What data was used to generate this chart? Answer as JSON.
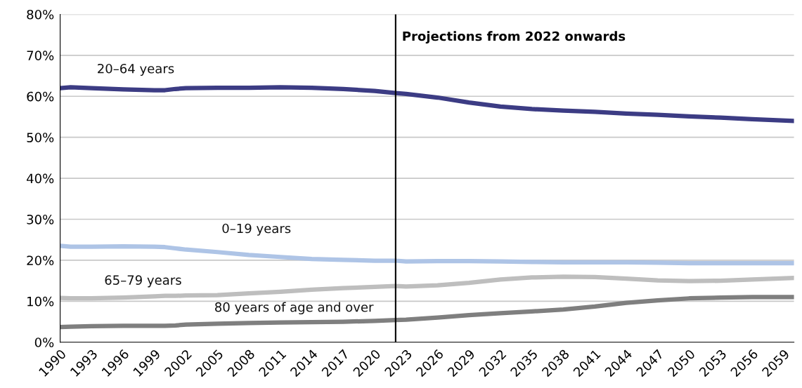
{
  "chart_data": {
    "type": "line",
    "x": [
      1990,
      1991,
      1993,
      1996,
      1999,
      2000,
      2001,
      2002,
      2005,
      2008,
      2011,
      2014,
      2017,
      2020,
      2022,
      2023,
      2026,
      2029,
      2032,
      2035,
      2038,
      2041,
      2044,
      2047,
      2050,
      2053,
      2056,
      2060
    ],
    "series": [
      {
        "name": "20–64 years",
        "color": "#3c3c84",
        "values": [
          62.0,
          62.2,
          62.0,
          61.7,
          61.5,
          61.5,
          61.8,
          62.0,
          62.1,
          62.1,
          62.2,
          62.1,
          61.8,
          61.3,
          60.8,
          60.6,
          59.7,
          58.5,
          57.5,
          56.9,
          56.5,
          56.2,
          55.8,
          55.5,
          55.1,
          54.8,
          54.4,
          54.0
        ]
      },
      {
        "name": "0–19 years",
        "color": "#aec4e6",
        "values": [
          23.5,
          23.3,
          23.3,
          23.4,
          23.3,
          23.2,
          22.9,
          22.6,
          22.0,
          21.3,
          20.8,
          20.3,
          20.1,
          19.9,
          19.9,
          19.7,
          19.8,
          19.8,
          19.7,
          19.6,
          19.5,
          19.5,
          19.5,
          19.4,
          19.3,
          19.3,
          19.3,
          19.3
        ]
      },
      {
        "name": "65–79 years",
        "color": "#bebebe",
        "values": [
          10.8,
          10.7,
          10.7,
          10.9,
          11.2,
          11.3,
          11.3,
          11.4,
          11.5,
          11.9,
          12.3,
          12.8,
          13.2,
          13.5,
          13.7,
          13.6,
          13.9,
          14.5,
          15.3,
          15.8,
          16.0,
          15.9,
          15.5,
          15.1,
          14.9,
          15.0,
          15.3,
          15.7
        ]
      },
      {
        "name": "80 years of age and over",
        "color": "#7f7f7f",
        "values": [
          3.7,
          3.8,
          3.9,
          4.0,
          4.0,
          4.0,
          4.1,
          4.3,
          4.5,
          4.7,
          4.8,
          4.9,
          5.0,
          5.2,
          5.4,
          5.5,
          6.0,
          6.6,
          7.1,
          7.5,
          8.0,
          8.7,
          9.6,
          10.2,
          10.7,
          10.9,
          11.0,
          11.0
        ]
      }
    ],
    "xlim": [
      1990,
      2060
    ],
    "xticks": [
      1990,
      1993,
      1996,
      1999,
      2002,
      2005,
      2008,
      2011,
      2014,
      2017,
      2020,
      2023,
      2026,
      2029,
      2032,
      2035,
      2038,
      2041,
      2044,
      2047,
      2050,
      2053,
      2056,
      2059
    ],
    "ylim": [
      0,
      80
    ],
    "yticks": [
      {
        "value": 0,
        "label": "0%"
      },
      {
        "value": 10,
        "label": "10%"
      },
      {
        "value": 20,
        "label": "20%"
      },
      {
        "value": 30,
        "label": "30%"
      },
      {
        "value": 40,
        "label": "40%"
      },
      {
        "value": 50,
        "label": "50%"
      },
      {
        "value": 60,
        "label": "60%"
      },
      {
        "value": 70,
        "label": "70%"
      },
      {
        "value": 80,
        "label": "80%"
      }
    ],
    "grid": "y",
    "line_style": "solid",
    "ref_lines": [
      {
        "axis": "x",
        "value": 2022,
        "label": "Projections from 2022 onwards",
        "color": "#000000"
      }
    ]
  }
}
